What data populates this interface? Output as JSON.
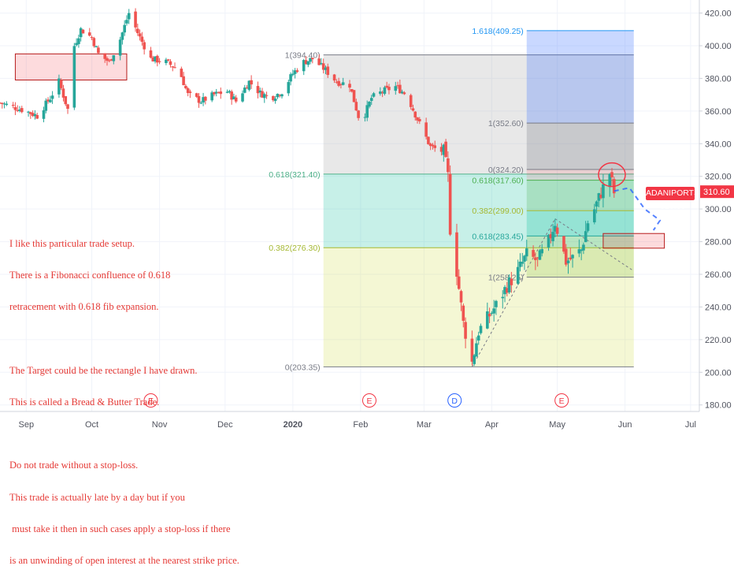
{
  "chart_data": {
    "type": "candlestick",
    "symbol": "ADANIPORTS",
    "last_price": "310.60",
    "y_ticks": [
      "420.00",
      "400.00",
      "380.00",
      "360.00",
      "340.00",
      "320.00",
      "300.00",
      "280.00",
      "260.00",
      "240.00",
      "220.00",
      "200.00",
      "180.00"
    ],
    "y_tick_values": [
      420,
      400,
      380,
      360,
      340,
      320,
      300,
      280,
      260,
      240,
      220,
      200,
      180
    ],
    "ylim": [
      176,
      428
    ],
    "x_ticks": [
      "Sep",
      "Oct",
      "Nov",
      "Dec",
      "2020",
      "Feb",
      "Mar",
      "Apr",
      "May",
      "Jun",
      "Jul"
    ],
    "x_tick_dates": [
      "2019-09-01",
      "2019-10-01",
      "2019-11-01",
      "2019-12-01",
      "2020-01-01",
      "2020-02-01",
      "2020-03-01",
      "2020-04-01",
      "2020-05-01",
      "2020-06-01",
      "2020-07-01"
    ],
    "x_range": [
      "2019-08-20",
      "2020-07-05"
    ],
    "anchors": [
      [
        "2019-08-20",
        365
      ],
      [
        "2019-09-01",
        360
      ],
      [
        "2019-09-06",
        357
      ],
      [
        "2019-09-12",
        368
      ],
      [
        "2019-09-16",
        378
      ],
      [
        "2019-09-20",
        361
      ],
      [
        "2019-09-23",
        400
      ],
      [
        "2019-09-26",
        410
      ],
      [
        "2019-10-01",
        405
      ],
      [
        "2019-10-04",
        395
      ],
      [
        "2019-10-09",
        390
      ],
      [
        "2019-10-14",
        404
      ],
      [
        "2019-10-18",
        420
      ],
      [
        "2019-10-23",
        405
      ],
      [
        "2019-10-28",
        392
      ],
      [
        "2019-11-04",
        390
      ],
      [
        "2019-11-10",
        385
      ],
      [
        "2019-11-14",
        370
      ],
      [
        "2019-11-20",
        366
      ],
      [
        "2019-11-26",
        370
      ],
      [
        "2019-12-02",
        372
      ],
      [
        "2019-12-06",
        366
      ],
      [
        "2019-12-12",
        378
      ],
      [
        "2019-12-17",
        371
      ],
      [
        "2019-12-22",
        368
      ],
      [
        "2019-12-27",
        372
      ],
      [
        "2020-01-01",
        383
      ],
      [
        "2020-01-06",
        390
      ],
      [
        "2020-01-10",
        392
      ],
      [
        "2020-01-16",
        385
      ],
      [
        "2020-01-21",
        378
      ],
      [
        "2020-01-27",
        376
      ],
      [
        "2020-02-01",
        352
      ],
      [
        "2020-02-06",
        368
      ],
      [
        "2020-02-11",
        372
      ],
      [
        "2020-02-17",
        375
      ],
      [
        "2020-02-22",
        370
      ],
      [
        "2020-02-27",
        355
      ],
      [
        "2020-03-04",
        338
      ],
      [
        "2020-03-10",
        335
      ],
      [
        "2020-03-12",
        320
      ],
      [
        "2020-03-13",
        288
      ],
      [
        "2020-03-16",
        262
      ],
      [
        "2020-03-19",
        230
      ],
      [
        "2020-03-23",
        206
      ],
      [
        "2020-03-26",
        225
      ],
      [
        "2020-03-31",
        235
      ],
      [
        "2020-04-03",
        241
      ],
      [
        "2020-04-08",
        253
      ],
      [
        "2020-04-13",
        262
      ],
      [
        "2020-04-17",
        272
      ],
      [
        "2020-04-22",
        268
      ],
      [
        "2020-04-27",
        280
      ],
      [
        "2020-04-30",
        292
      ],
      [
        "2020-05-05",
        268
      ],
      [
        "2020-05-08",
        270
      ],
      [
        "2020-05-12",
        275
      ],
      [
        "2020-05-15",
        292
      ],
      [
        "2020-05-18",
        300
      ],
      [
        "2020-05-21",
        310
      ],
      [
        "2020-05-25",
        322
      ],
      [
        "2020-05-27",
        310
      ]
    ],
    "fib_retracement": {
      "levels": [
        {
          "label": "1(394.40)",
          "value": 394.4
        },
        {
          "label": "0.618(321.40)",
          "value": 321.4
        },
        {
          "label": "0.382(276.30)",
          "value": 276.3
        },
        {
          "label": "0(203.35)",
          "value": 203.35
        }
      ],
      "from_date": "2020-01-15",
      "to_date": "2020-06-05"
    },
    "fib_extension": {
      "levels": [
        {
          "label": "1.618(409.25)",
          "value": 409.25
        },
        {
          "label": "1(352.60)",
          "value": 352.6
        },
        {
          "label": "0(324.20)",
          "value": 324.2
        },
        {
          "label": "0.618(317.60)",
          "value": 317.6
        },
        {
          "label": "0.382(299.00)",
          "value": 299.0
        },
        {
          "label": "0.618(283.45)",
          "value": 283.45
        },
        {
          "label": "1(258.25)",
          "value": 258.25
        }
      ],
      "from_date": "2020-04-17",
      "to_date": "2020-06-05"
    },
    "rectangles": [
      {
        "name": "left-rectangle",
        "from_date": "2019-08-27",
        "to_date": "2019-10-17",
        "top": 395,
        "bottom": 379
      },
      {
        "name": "target-rectangle",
        "from_date": "2020-05-22",
        "to_date": "2020-06-19",
        "top": 285,
        "bottom": 276
      }
    ],
    "events": [
      {
        "label": "E",
        "date": "2019-10-28",
        "color": "#f23645"
      },
      {
        "label": "E",
        "date": "2020-02-05",
        "color": "#f23645"
      },
      {
        "label": "D",
        "date": "2020-03-15",
        "color": "#2962ff"
      },
      {
        "label": "E",
        "date": "2020-05-03",
        "color": "#f23645"
      }
    ],
    "colors": {
      "up": "#26a69a",
      "down": "#ef5350",
      "grid": "#f0f3fa",
      "text": "#50535e",
      "note": "#e53935"
    }
  },
  "annotation_lines": [
    "I like this particular trade setup.",
    "There is a Fibonacci confluence of 0.618",
    "retracement with 0.618 fib expansion.",
    "",
    "The Target could be the rectangle I have drawn.",
    "This is called a Bread & Butter Trade.",
    "",
    "Do not trade without a stop-loss.",
    "This trade is actually late by a day but if you",
    " must take it then in such cases apply a stop-loss if there",
    "is an unwinding of open interest at the nearest strike price."
  ]
}
